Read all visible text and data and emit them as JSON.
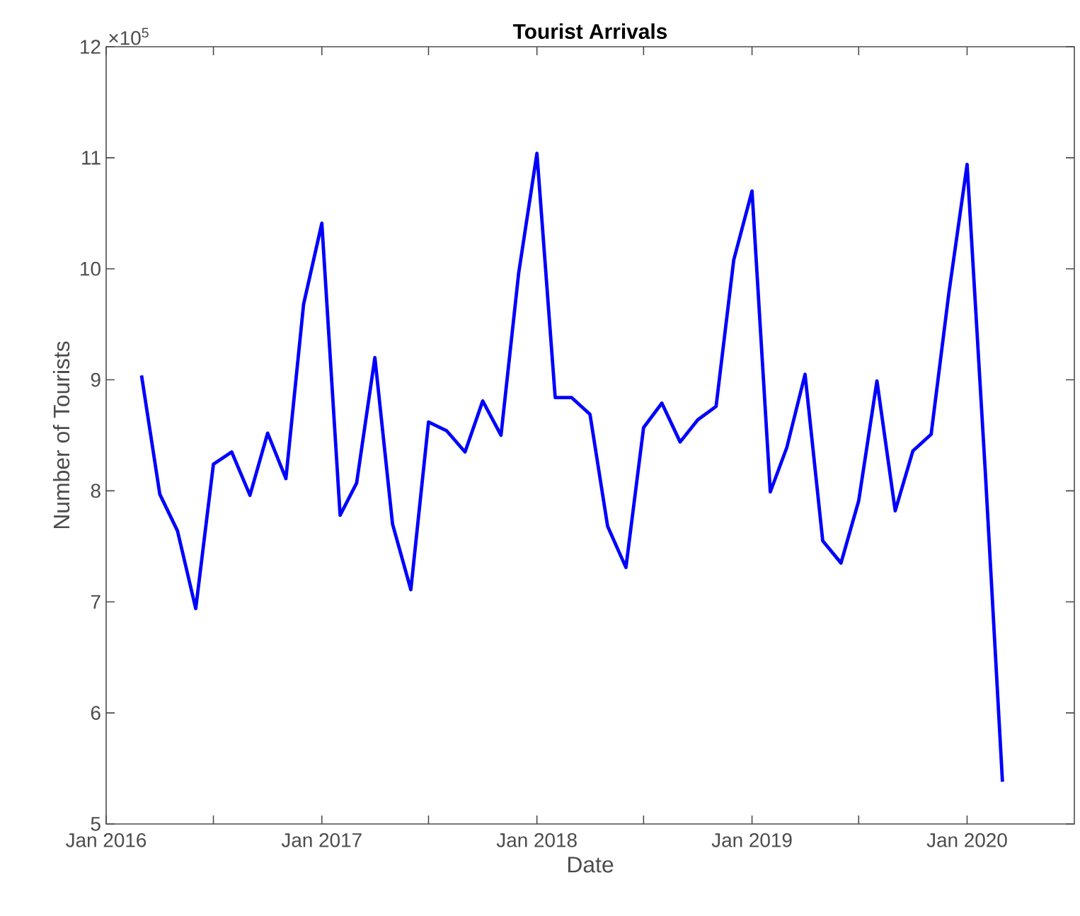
{
  "chart_data": {
    "type": "line",
    "title": "Tourist Arrivals",
    "xlabel": "Date",
    "ylabel": "Number of Tourists",
    "annotations": [
      "×10$^{5}$"
    ],
    "x": [
      "2016-03",
      "2016-04",
      "2016-05",
      "2016-06",
      "2016-07",
      "2016-08",
      "2016-09",
      "2016-10",
      "2016-11",
      "2016-12",
      "2017-01",
      "2017-02",
      "2017-03",
      "2017-04",
      "2017-05",
      "2017-06",
      "2017-07",
      "2017-08",
      "2017-09",
      "2017-10",
      "2017-11",
      "2017-12",
      "2018-01",
      "2018-02",
      "2018-03",
      "2018-04",
      "2018-05",
      "2018-06",
      "2018-07",
      "2018-08",
      "2018-09",
      "2018-10",
      "2018-11",
      "2018-12",
      "2019-01",
      "2019-02",
      "2019-03",
      "2019-04",
      "2019-05",
      "2019-06",
      "2019-07",
      "2019-08",
      "2019-09",
      "2019-10",
      "2019-11",
      "2019-12",
      "2020-01",
      "2020-02",
      "2020-03"
    ],
    "series": [
      {
        "color": "#0000ff",
        "values": [
          9.04,
          7.97,
          7.64,
          6.94,
          8.24,
          8.35,
          7.96,
          8.52,
          8.11,
          9.68,
          10.41,
          7.78,
          8.07,
          9.2,
          7.7,
          7.11,
          8.62,
          8.54,
          8.35,
          8.81,
          8.5,
          9.96,
          11.04,
          8.84,
          8.84,
          8.69,
          7.68,
          7.31,
          8.57,
          8.79,
          8.44,
          8.64,
          8.76,
          10.08,
          10.7,
          7.99,
          8.39,
          9.05,
          7.55,
          7.35,
          7.91,
          8.99,
          7.82,
          8.36,
          8.51,
          9.78,
          10.94,
          8.16,
          5.38
        ]
      }
    ],
    "xlim": [
      "2016-01",
      "2020-07"
    ],
    "xticks": [
      {
        "value": "2016-01",
        "label": "Jan 2016"
      },
      {
        "value": "2016-07",
        "label": null
      },
      {
        "value": "2017-01",
        "label": "Jan 2017"
      },
      {
        "value": "2017-07",
        "label": null
      },
      {
        "value": "2018-01",
        "label": "Jan 2018"
      },
      {
        "value": "2018-07",
        "label": null
      },
      {
        "value": "2019-01",
        "label": "Jan 2019"
      },
      {
        "value": "2019-07",
        "label": null
      },
      {
        "value": "2020-01",
        "label": "Jan 2020"
      }
    ],
    "ylim": [
      5,
      12
    ],
    "yticks": [
      5,
      6,
      7,
      8,
      9,
      10,
      11,
      12
    ],
    "line_style": "solid",
    "marker": "none",
    "grid": false
  }
}
